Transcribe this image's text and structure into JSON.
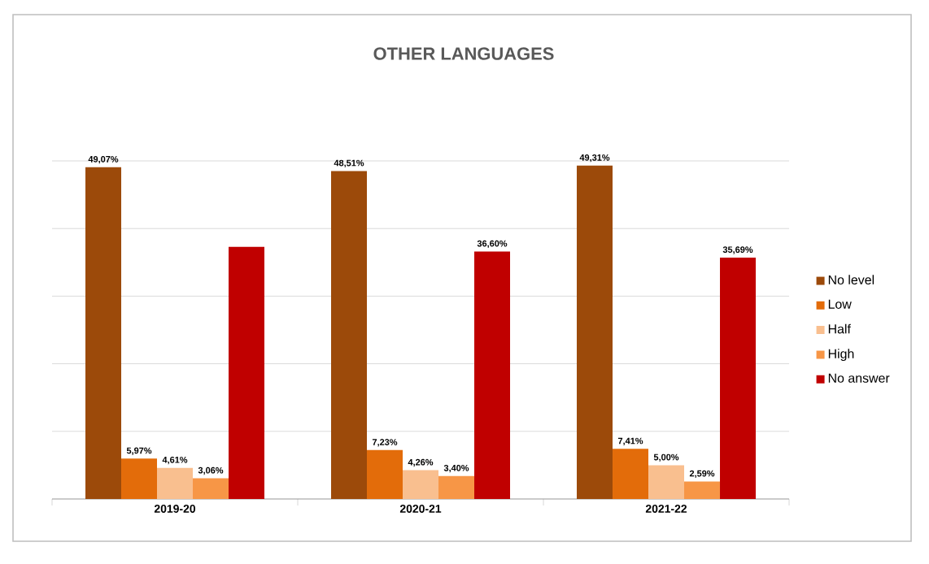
{
  "chart_data": {
    "type": "bar",
    "title": "OTHER LANGUAGES",
    "categories": [
      "2019-20",
      "2020-21",
      "2021-22"
    ],
    "series": [
      {
        "name": "No level",
        "color": "#9c4a0a",
        "values": [
          49.07,
          48.51,
          49.31
        ],
        "value_labels": [
          "49,07%",
          "48,51%",
          "49,31%"
        ]
      },
      {
        "name": "Low",
        "color": "#e36c0a",
        "values": [
          5.97,
          7.23,
          7.41
        ],
        "value_labels": [
          "5,97%",
          "7,23%",
          "7,41%"
        ]
      },
      {
        "name": "Half",
        "color": "#f9bf8f",
        "values": [
          4.61,
          4.26,
          5.0
        ],
        "value_labels": [
          "4,61%",
          "4,26%",
          "5,00%"
        ]
      },
      {
        "name": "High",
        "color": "#f79646",
        "values": [
          3.06,
          3.4,
          2.59
        ],
        "value_labels": [
          "3,06%",
          "3,40%",
          "2,59%"
        ]
      },
      {
        "name": "No answer",
        "color": "#c00000",
        "values": [
          37.3,
          36.6,
          35.69
        ],
        "value_labels": [
          null,
          "36,60%",
          "35,69%"
        ]
      }
    ],
    "ylim": [
      0,
      50
    ],
    "yticks": [
      {
        "value": 0,
        "label": null
      },
      {
        "value": 10,
        "label": null
      },
      {
        "value": 20,
        "label": null
      },
      {
        "value": 30,
        "label": null
      },
      {
        "value": 40,
        "label": null
      },
      {
        "value": 50,
        "label": null
      }
    ],
    "grid": "y",
    "legend": "right",
    "tick_labels": "x"
  }
}
